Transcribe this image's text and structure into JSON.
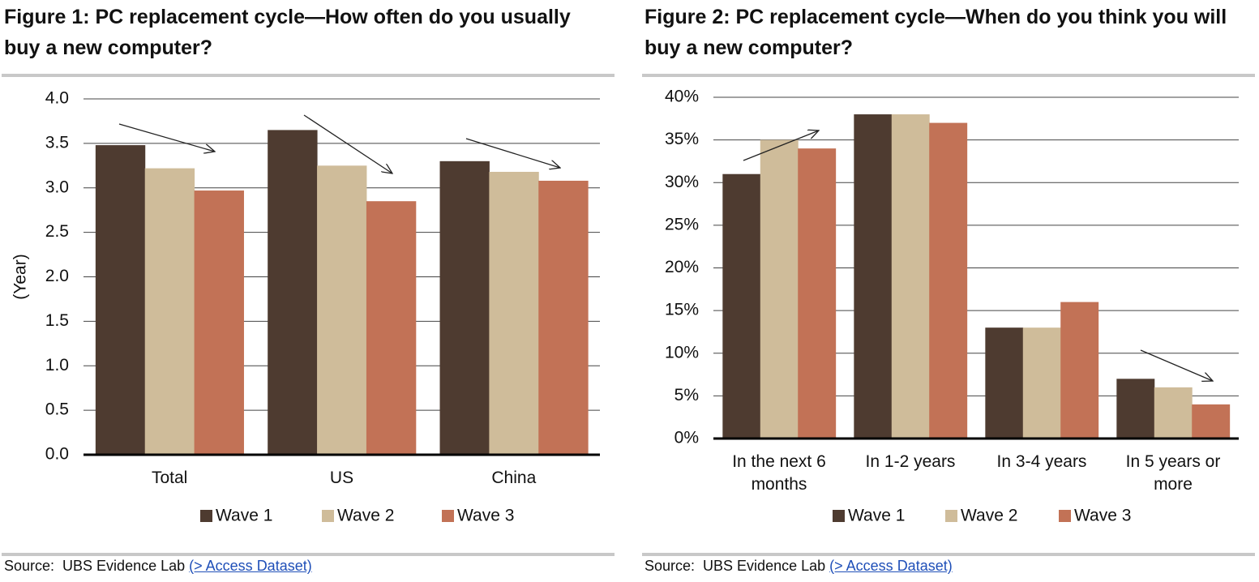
{
  "chart_data": [
    {
      "type": "bar",
      "title": "Figure 1: PC replacement cycle—How often do you usually buy a new computer?",
      "y_label": "(Year)",
      "categories": [
        "Total",
        "US",
        "China"
      ],
      "series": [
        {
          "name": "Wave 1",
          "color": "#4e3b30",
          "values": [
            3.48,
            3.65,
            3.3
          ]
        },
        {
          "name": "Wave 2",
          "color": "#cfbc9a",
          "values": [
            3.22,
            3.25,
            3.18
          ]
        },
        {
          "name": "Wave 3",
          "color": "#c27256",
          "values": [
            2.97,
            2.85,
            3.08
          ]
        }
      ],
      "ylim": [
        0,
        4
      ],
      "yticks": [
        {
          "value": 0,
          "label": "0.0"
        },
        0.5,
        {
          "value": 1,
          "label": "1.0"
        },
        1.5,
        {
          "value": 2,
          "label": "2.0"
        },
        2.5,
        {
          "value": 3,
          "label": "3.0"
        },
        3.5,
        {
          "value": 4,
          "label": "4.0"
        }
      ],
      "grid": true,
      "legend": "bottom",
      "source": "Source:  UBS Evidence Lab",
      "source_link": "(> Access Dataset)"
    },
    {
      "type": "bar",
      "title": "Figure 2: PC replacement cycle—When do you think you will buy a new computer?",
      "categories": [
        "In the next 6 months",
        "In 1-2 years",
        "In 3-4 years",
        "In 5 years or more"
      ],
      "series": [
        {
          "name": "Wave 1",
          "color": "#4e3b30",
          "values": [
            31,
            38,
            13,
            7
          ]
        },
        {
          "name": "Wave 2",
          "color": "#cfbc9a",
          "values": [
            35,
            38,
            13,
            6
          ]
        },
        {
          "name": "Wave 3",
          "color": "#c27256",
          "values": [
            34,
            37,
            16,
            4
          ]
        }
      ],
      "ylim": [
        0,
        40
      ],
      "yticks": [
        {
          "value": 0,
          "label": "0%"
        },
        {
          "value": 5,
          "label": "5%"
        },
        {
          "value": 10,
          "label": "10%"
        },
        {
          "value": 15,
          "label": "15%"
        },
        {
          "value": 20,
          "label": "20%"
        },
        {
          "value": 25,
          "label": "25%"
        },
        {
          "value": 30,
          "label": "30%"
        },
        {
          "value": 35,
          "label": "35%"
        },
        {
          "value": 40,
          "label": "40%"
        }
      ],
      "grid": true,
      "legend": "bottom",
      "source": "Source:  UBS Evidence Lab",
      "source_link": "(> Access Dataset)"
    }
  ]
}
